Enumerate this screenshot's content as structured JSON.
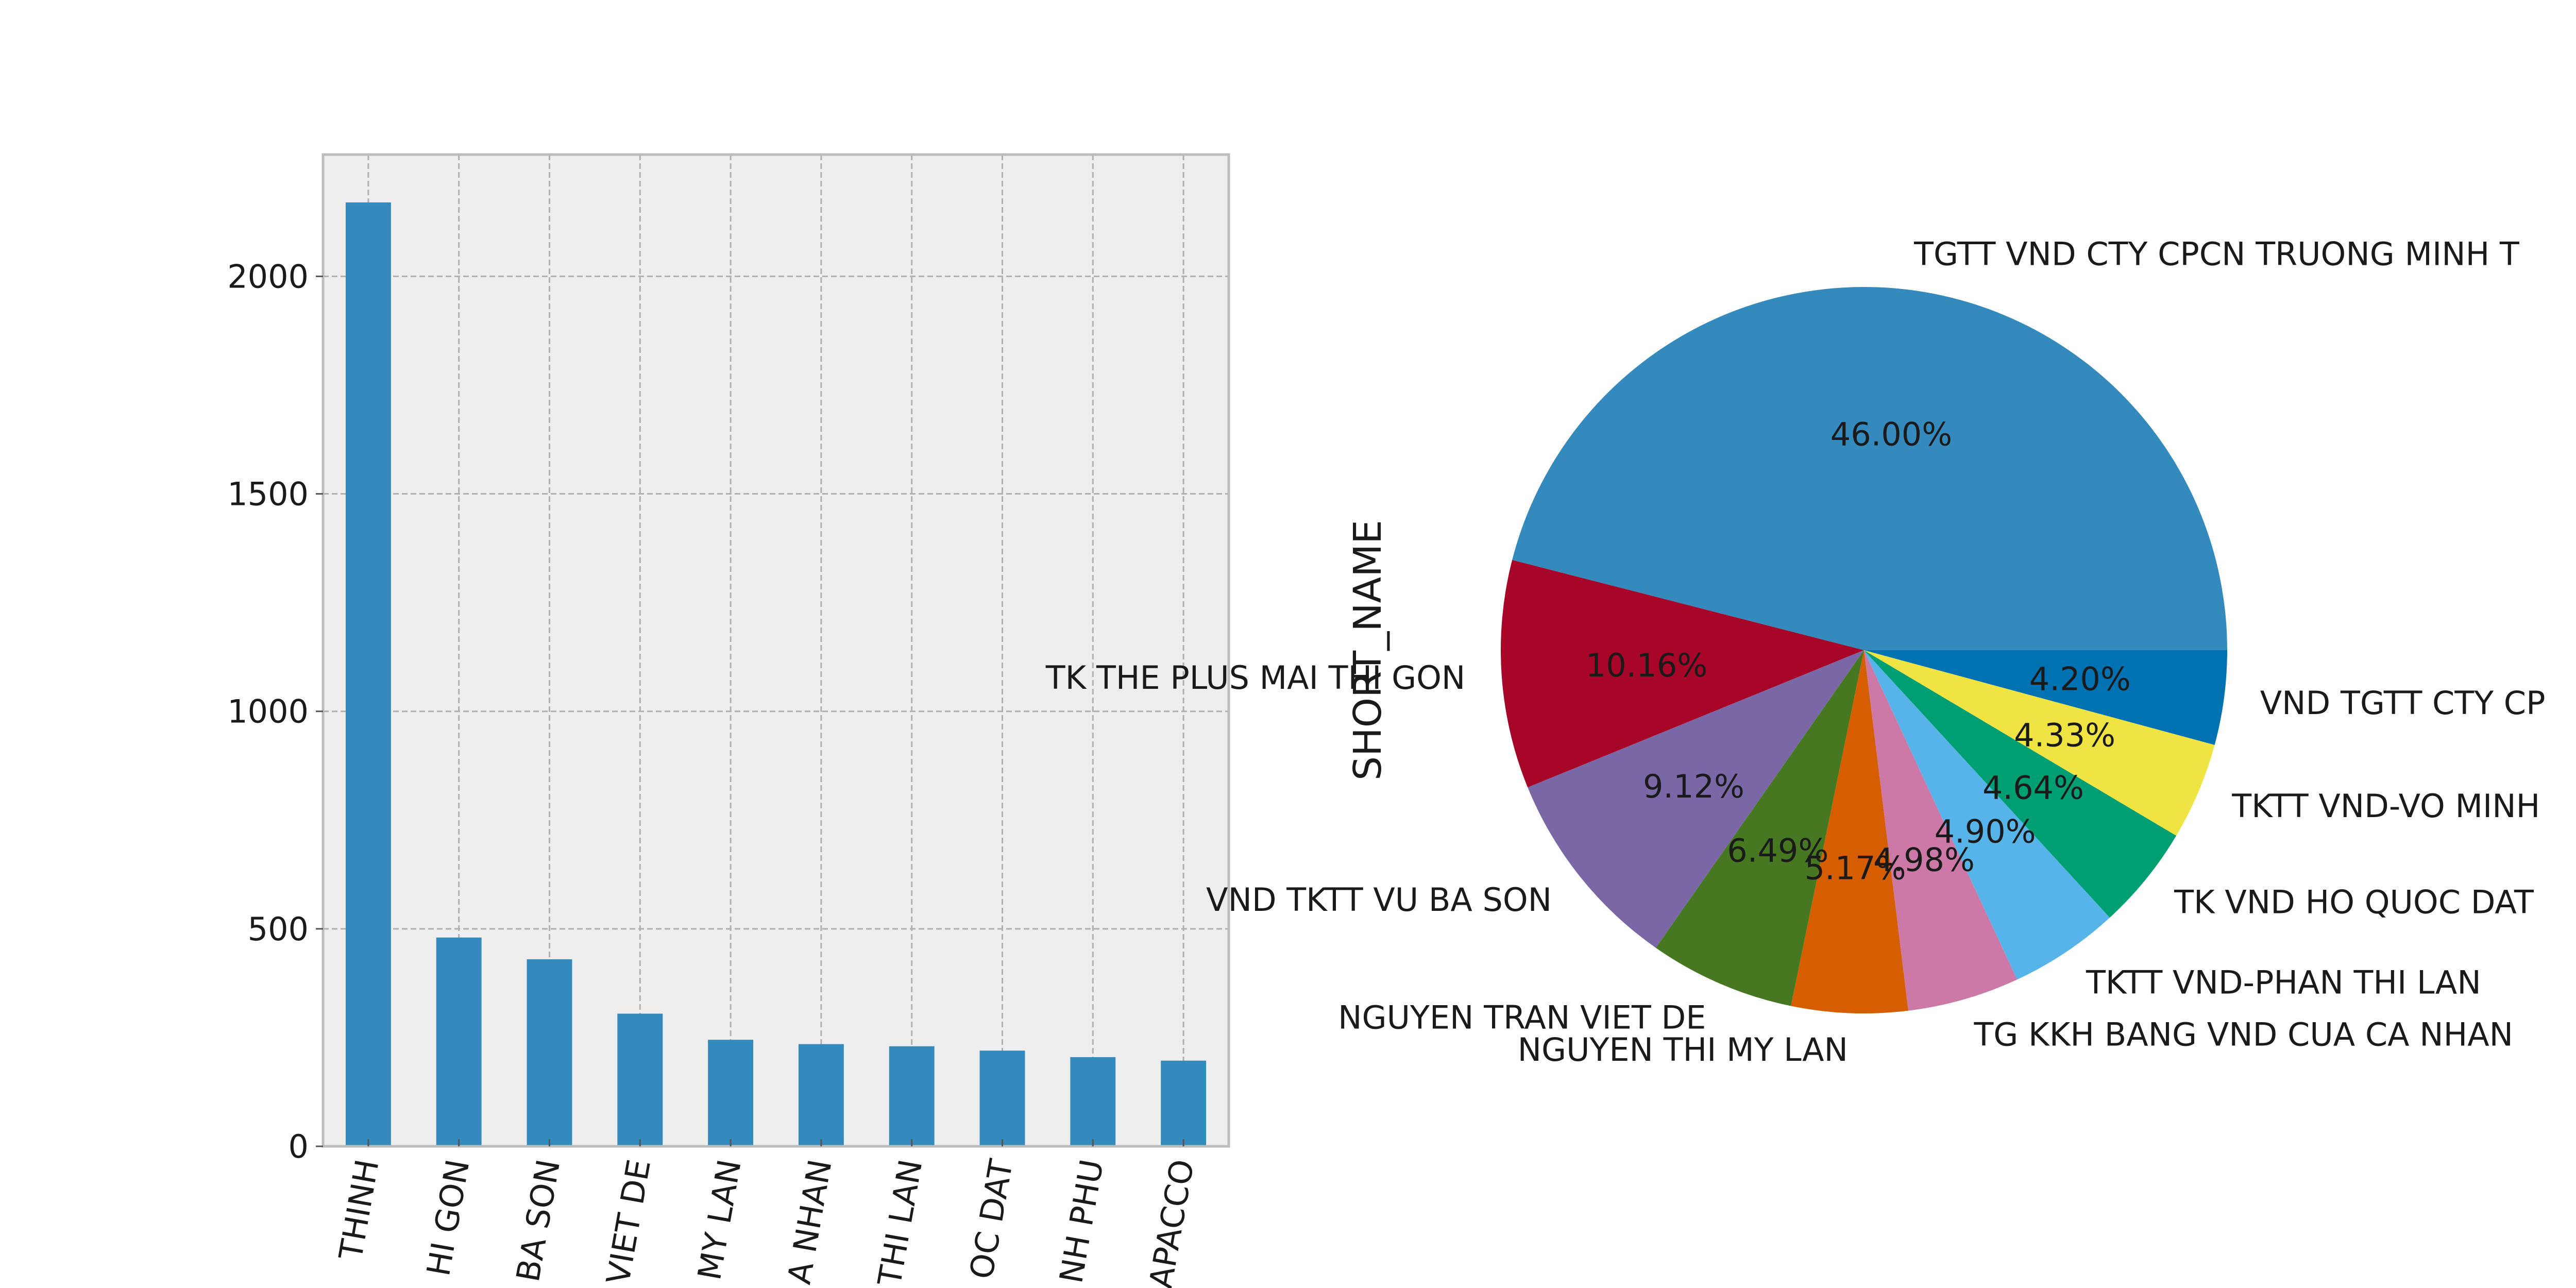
{
  "chart_data": [
    {
      "type": "bar",
      "categories": [
        "THINH",
        "HI GON",
        "BA SON",
        "VIET DE",
        "MY LAN",
        "A NHAN",
        "THI LAN",
        "OC DAT",
        "NH PHU",
        "APACCO"
      ],
      "values": [
        2170,
        480,
        430,
        305,
        245,
        235,
        230,
        220,
        205,
        197
      ],
      "ylim": [
        0,
        2280
      ],
      "yticks": [
        0,
        500,
        1000,
        1500,
        2000
      ],
      "grid": true,
      "colors": {
        "bar": "#348abd",
        "background": "#eeeeee",
        "grid": "#b0b0b0",
        "frame": "#bcbcbc"
      }
    },
    {
      "type": "pie",
      "ylabel": "SHORT_NAME",
      "labels": [
        "TGTT VND CTY CPCN TRUONG MINH T",
        "TK THE PLUS MAI THI GON",
        "VND TKTT VU BA SON",
        "NGUYEN TRAN VIET DE",
        "NGUYEN THI MY LAN",
        "TG KKH BANG VND CUA CA NHAN",
        "TKTT VND-PHAN THI LAN",
        "TK VND HO QUOC DAT",
        "TKTT VND-VO MINH",
        "VND TGTT CTY CP"
      ],
      "values": [
        46.0,
        10.16,
        9.12,
        6.49,
        5.17,
        4.98,
        4.9,
        4.64,
        4.33,
        4.2
      ],
      "pct_labels": [
        "46.00%",
        "10.16%",
        "9.12%",
        "6.49%",
        "5.17%",
        "4.98%",
        "4.90%",
        "4.64%",
        "4.33%",
        "4.20%"
      ],
      "colors": [
        "#348abd",
        "#a60628",
        "#7a68a6",
        "#467821",
        "#d55e00",
        "#cc79a7",
        "#56b4e9",
        "#009e73",
        "#f0e442",
        "#0072b2"
      ]
    }
  ]
}
